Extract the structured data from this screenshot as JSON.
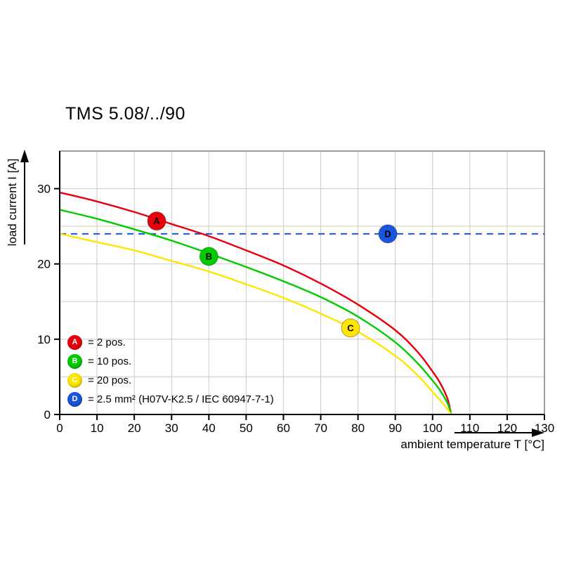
{
  "chart_data": {
    "type": "line",
    "title": "TMS 5.08/../90",
    "xlabel": "ambient temperature T [°C]",
    "ylabel": "load current I [A]",
    "xlim": [
      0,
      130
    ],
    "ylim": [
      0,
      35
    ],
    "xticks": [
      0,
      10,
      20,
      30,
      40,
      50,
      60,
      70,
      80,
      90,
      100,
      110,
      120,
      130
    ],
    "yticks": [
      0,
      10,
      20,
      30
    ],
    "grid": true,
    "grid_step_y": 5,
    "legend_position": "inside lower-left",
    "series": [
      {
        "id": "A",
        "legend_label": "= 2 pos.",
        "color": "#e8000d",
        "marker": {
          "x": 26,
          "y": 25.7
        },
        "points": [
          [
            0,
            29.5
          ],
          [
            10,
            28.3
          ],
          [
            20,
            26.9
          ],
          [
            30,
            25.3
          ],
          [
            40,
            23.7
          ],
          [
            50,
            21.8
          ],
          [
            60,
            19.8
          ],
          [
            70,
            17.4
          ],
          [
            80,
            14.6
          ],
          [
            90,
            11.2
          ],
          [
            96,
            8.3
          ],
          [
            100,
            5.7
          ],
          [
            102,
            4.2
          ],
          [
            104,
            2.1
          ],
          [
            105,
            0
          ]
        ]
      },
      {
        "id": "B",
        "legend_label": "= 10 pos.",
        "color": "#00cc00",
        "marker": {
          "x": 40,
          "y": 21.0
        },
        "points": [
          [
            0,
            27.2
          ],
          [
            10,
            26.0
          ],
          [
            20,
            24.6
          ],
          [
            30,
            23.1
          ],
          [
            40,
            21.4
          ],
          [
            50,
            19.6
          ],
          [
            60,
            17.7
          ],
          [
            70,
            15.6
          ],
          [
            80,
            13.0
          ],
          [
            90,
            9.6
          ],
          [
            96,
            6.8
          ],
          [
            100,
            4.5
          ],
          [
            102,
            3.2
          ],
          [
            104,
            1.5
          ],
          [
            105,
            0
          ]
        ]
      },
      {
        "id": "C",
        "legend_label": "= 20 pos.",
        "color": "#ffe600",
        "marker": {
          "x": 78,
          "y": 11.5
        },
        "points": [
          [
            0,
            24.0
          ],
          [
            10,
            22.9
          ],
          [
            20,
            21.8
          ],
          [
            30,
            20.4
          ],
          [
            40,
            19.0
          ],
          [
            50,
            17.3
          ],
          [
            60,
            15.5
          ],
          [
            70,
            13.4
          ],
          [
            80,
            11.0
          ],
          [
            90,
            7.8
          ],
          [
            96,
            5.2
          ],
          [
            100,
            3.0
          ],
          [
            102,
            1.9
          ],
          [
            104,
            0.7
          ],
          [
            105,
            0
          ]
        ]
      }
    ],
    "reference_line": {
      "id": "D",
      "value": 24,
      "style": "dashed",
      "color": "#1a56db",
      "legend_label": "= 2.5 mm² (H07V-K2.5 / IEC 60947-7-1)",
      "marker": {
        "x": 88,
        "y": 24
      }
    }
  },
  "colors": {
    "grid": "#c9c9c9",
    "plot_border": "#7a7a7a",
    "axis": "#000000",
    "background": "#ffffff"
  }
}
